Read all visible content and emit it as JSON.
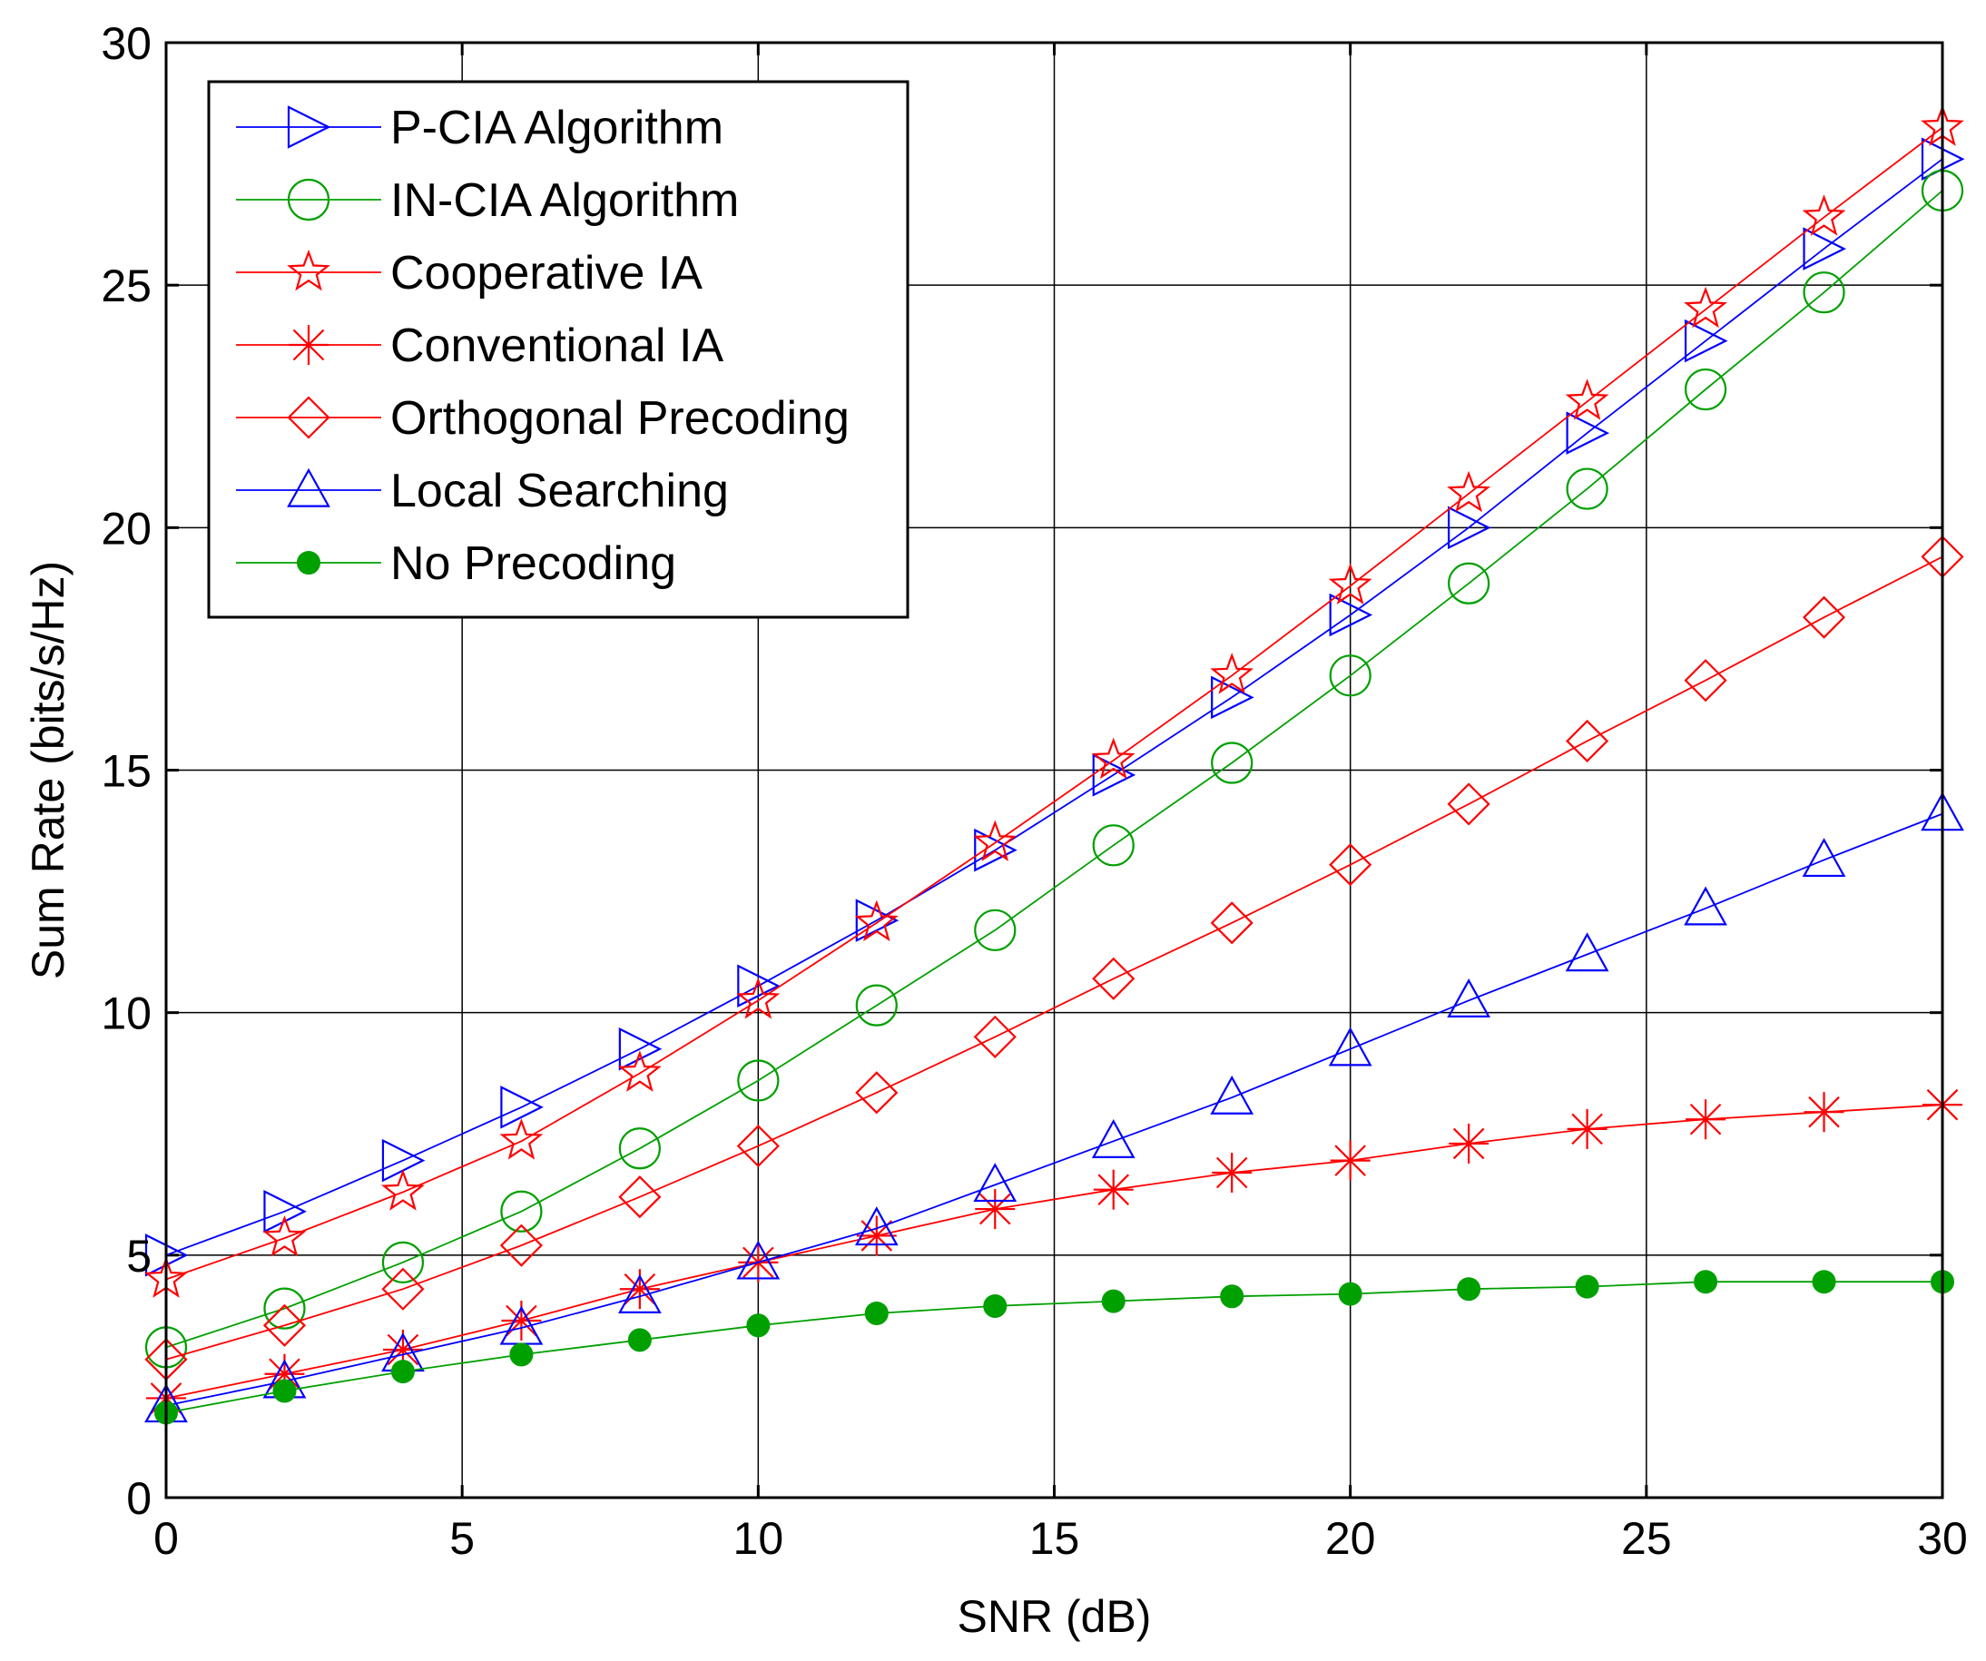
{
  "chart_data": {
    "type": "line",
    "title": "",
    "xlabel": "SNR (dB)",
    "ylabel": "Sum Rate (bits/s/Hz)",
    "xlim": [
      0,
      30
    ],
    "ylim": [
      0,
      30
    ],
    "xticks": [
      0,
      5,
      10,
      15,
      20,
      25,
      30
    ],
    "yticks": [
      0,
      5,
      10,
      15,
      20,
      25,
      30
    ],
    "grid": true,
    "legend_position": "top-left",
    "x": [
      0,
      2,
      4,
      6,
      8,
      10,
      12,
      14,
      16,
      18,
      20,
      22,
      24,
      26,
      28,
      30
    ],
    "series": [
      {
        "name": "P-CIA Algorithm",
        "color": "#0000ff",
        "marker": "triangle-right",
        "values": [
          5.0,
          5.9,
          6.95,
          8.05,
          9.25,
          10.55,
          11.9,
          13.35,
          14.9,
          16.5,
          18.2,
          20.0,
          21.95,
          23.85,
          25.75,
          27.6
        ]
      },
      {
        "name": "IN-CIA Algorithm",
        "color": "#00a000",
        "marker": "circle",
        "values": [
          3.1,
          3.9,
          4.85,
          5.9,
          7.2,
          8.6,
          10.15,
          11.7,
          13.45,
          15.15,
          16.95,
          18.85,
          20.8,
          22.85,
          24.85,
          26.95
        ]
      },
      {
        "name": "Cooperative IA",
        "color": "#ff0000",
        "marker": "star",
        "values": [
          4.5,
          5.35,
          6.3,
          7.35,
          8.75,
          10.25,
          11.85,
          13.5,
          15.2,
          16.95,
          18.8,
          20.7,
          22.6,
          24.5,
          26.4,
          28.25
        ]
      },
      {
        "name": "Conventional IA",
        "color": "#ff0000",
        "marker": "asterisk",
        "values": [
          2.05,
          2.55,
          3.05,
          3.65,
          4.3,
          4.85,
          5.4,
          5.95,
          6.35,
          6.7,
          6.95,
          7.3,
          7.6,
          7.8,
          7.95,
          8.1
        ]
      },
      {
        "name": "Orthogonal Precoding",
        "color": "#ff0000",
        "marker": "diamond",
        "values": [
          2.85,
          3.55,
          4.3,
          5.2,
          6.2,
          7.25,
          8.35,
          9.5,
          10.7,
          11.85,
          13.05,
          14.3,
          15.6,
          16.85,
          18.15,
          19.4
        ]
      },
      {
        "name": "Local Searching",
        "color": "#0000ff",
        "marker": "triangle-up",
        "values": [
          1.9,
          2.4,
          2.95,
          3.5,
          4.15,
          4.85,
          5.55,
          6.45,
          7.35,
          8.25,
          9.25,
          10.25,
          11.2,
          12.15,
          13.15,
          14.1
        ]
      },
      {
        "name": "No Precoding",
        "color": "#00a000",
        "marker": "filled-circle",
        "values": [
          1.75,
          2.2,
          2.6,
          2.95,
          3.25,
          3.55,
          3.8,
          3.95,
          4.05,
          4.15,
          4.2,
          4.3,
          4.35,
          4.45,
          4.45,
          4.45
        ]
      }
    ]
  }
}
